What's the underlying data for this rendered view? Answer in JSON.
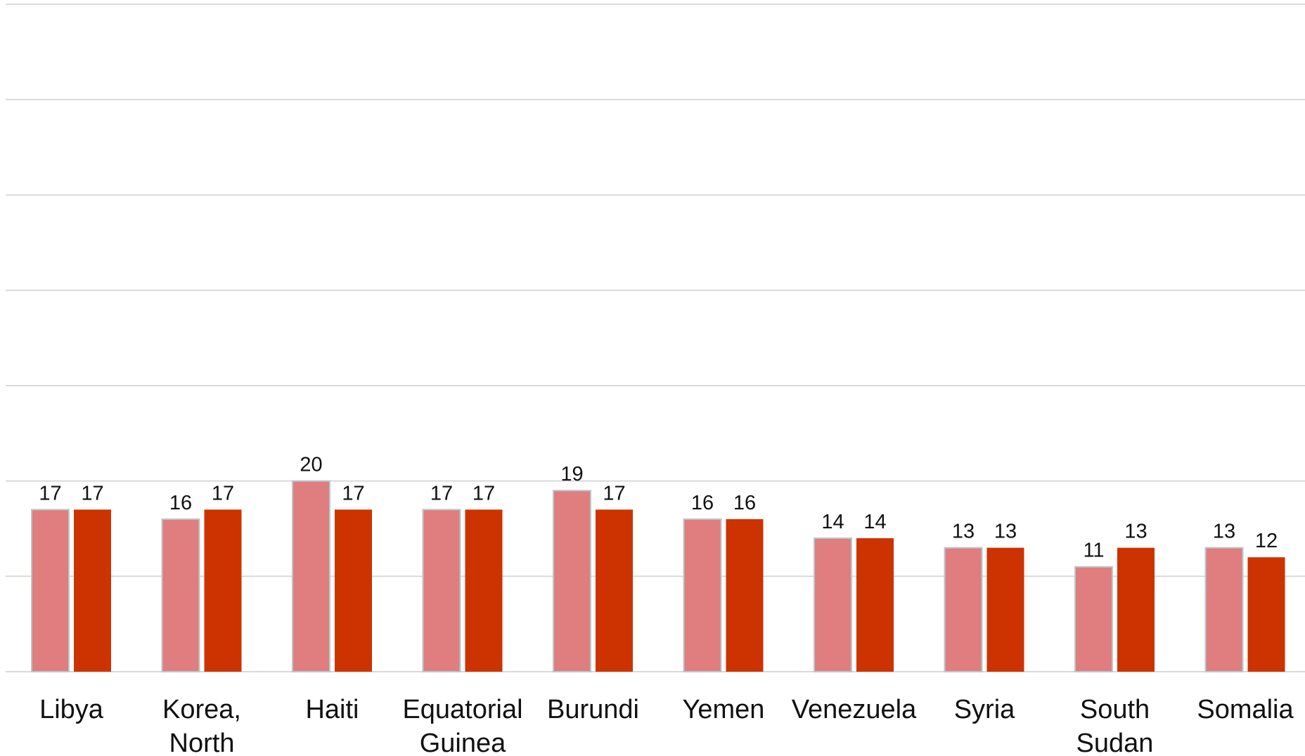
{
  "chart_data": {
    "type": "bar",
    "categories": [
      [
        "Libya"
      ],
      [
        "Korea,",
        "North"
      ],
      [
        "Haiti"
      ],
      [
        "Equatorial",
        "Guinea"
      ],
      [
        "Burundi"
      ],
      [
        "Yemen"
      ],
      [
        "Venezuela"
      ],
      [
        "Syria"
      ],
      [
        "South",
        "Sudan"
      ],
      [
        "Somalia"
      ]
    ],
    "series": [
      {
        "values": [
          17,
          16,
          20,
          17,
          19,
          16,
          14,
          13,
          11,
          13
        ],
        "color": "#e07d7e"
      },
      {
        "values": [
          17,
          17,
          17,
          17,
          17,
          16,
          14,
          13,
          13,
          12
        ],
        "color": "#cc3300"
      }
    ],
    "ylim": [
      0,
      70
    ],
    "gridline_step": 10,
    "grid": true,
    "legend": "none"
  }
}
